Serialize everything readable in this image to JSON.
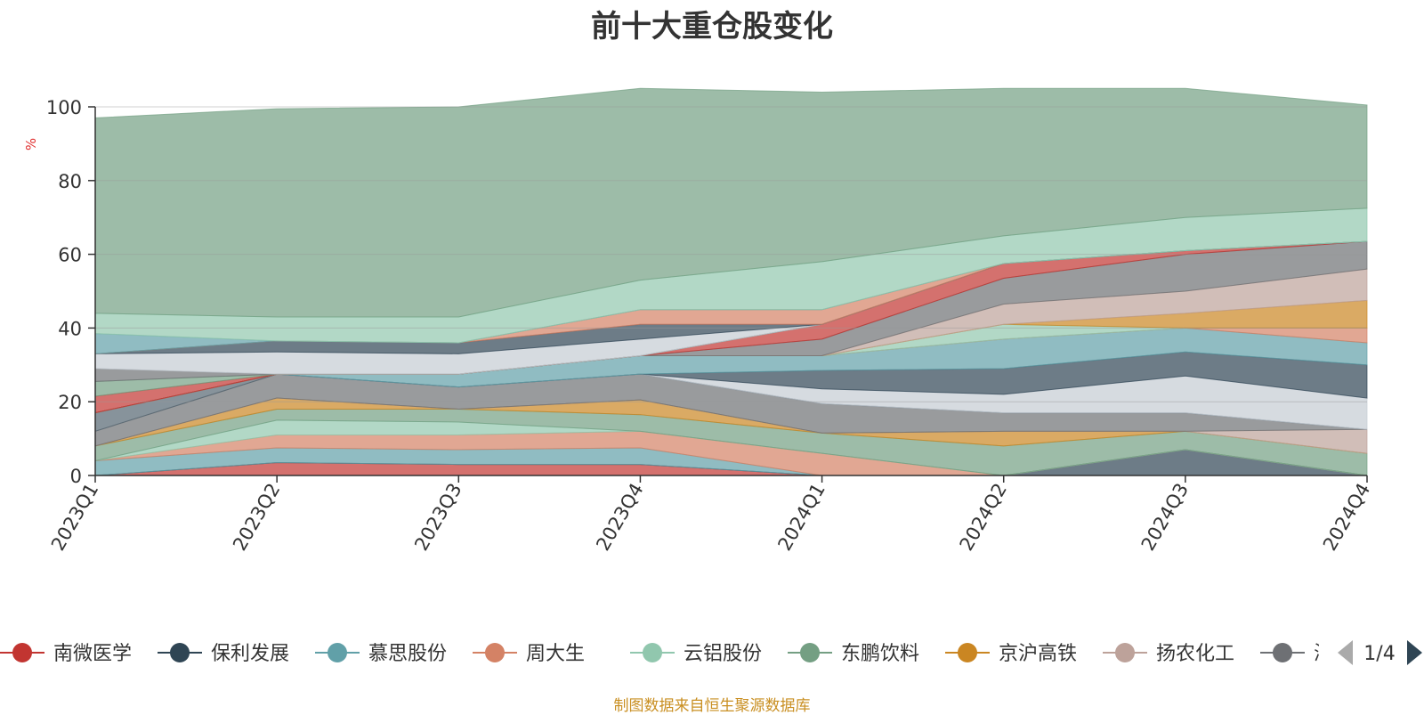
{
  "title": "前十大重仓股变化",
  "source_note": "制图数据来自恒生聚源数据库",
  "legend_page": "1/4",
  "chart_data": {
    "type": "area",
    "stacked": true,
    "title": "前十大重仓股变化",
    "ylabel": "%",
    "ylim": [
      0,
      100
    ],
    "yticks": [
      0,
      20,
      40,
      60,
      80,
      100
    ],
    "x": [
      "2023Q1",
      "2023Q2",
      "2023Q3",
      "2023Q4",
      "2024Q1",
      "2024Q2",
      "2024Q3",
      "2024Q4"
    ],
    "grid": true,
    "legend_position": "bottom",
    "series": [
      {
        "color": "#c23531",
        "values": [
          0,
          3.5,
          3,
          3,
          0,
          0,
          0,
          0
        ]
      },
      {
        "color": "#2f4554",
        "values": [
          0,
          0,
          0,
          0,
          0,
          0,
          7,
          0
        ]
      },
      {
        "color": "#61a0a8",
        "values": [
          4,
          4,
          4,
          4.5,
          0,
          0,
          0,
          0
        ]
      },
      {
        "color": "#d48265",
        "values": [
          0,
          3.5,
          4,
          4.5,
          6,
          0,
          0,
          0
        ]
      },
      {
        "color": "#91c7ae",
        "values": [
          0,
          4,
          3.5,
          0,
          0,
          0,
          0,
          0
        ]
      },
      {
        "color": "#749f83",
        "values": [
          4,
          3,
          3.5,
          4.5,
          5.5,
          8,
          5,
          6
        ]
      },
      {
        "color": "#ca8622",
        "values": [
          0,
          3,
          0,
          4,
          0,
          4,
          0,
          0
        ]
      },
      {
        "color": "#bda29a",
        "values": [
          0,
          0,
          0,
          0,
          0,
          0,
          0,
          6.5
        ]
      },
      {
        "color": "#6e7074",
        "values": [
          4,
          6.5,
          6,
          7,
          8,
          5,
          5,
          0
        ]
      },
      {
        "color": "#546570",
        "values": [
          5,
          0,
          0,
          0,
          0,
          0,
          0,
          0
        ]
      },
      {
        "color": "#c4ccd3",
        "values": [
          0,
          0,
          0,
          0,
          4,
          5,
          10,
          8.5
        ]
      },
      {
        "color": "#2f4554",
        "values": [
          0,
          0,
          0,
          0,
          5,
          7,
          6.5,
          9
        ]
      },
      {
        "color": "#61a0a8",
        "values": [
          0,
          0,
          3.5,
          5,
          4,
          8,
          6.5,
          6
        ]
      },
      {
        "color": "#d48265",
        "values": [
          0,
          0,
          0,
          0,
          0,
          0,
          0,
          4
        ]
      },
      {
        "color": "#91c7ae",
        "values": [
          0,
          0,
          0,
          0,
          0,
          4,
          0,
          0
        ]
      },
      {
        "color": "#ca8622",
        "values": [
          0,
          0,
          0,
          0,
          0,
          0,
          4,
          7.5
        ]
      },
      {
        "color": "#bda29a",
        "values": [
          0,
          0,
          0,
          0,
          0,
          5.5,
          6,
          8.5
        ]
      },
      {
        "color": "#6e7074",
        "values": [
          0,
          0,
          0,
          0,
          4.5,
          7,
          10,
          7.5
        ]
      },
      {
        "color": "#c23531",
        "values": [
          4.5,
          0,
          0,
          0,
          4,
          4,
          1,
          0
        ]
      },
      {
        "color": "#749f83",
        "values": [
          4,
          0,
          0,
          0,
          0,
          0,
          0,
          0
        ]
      },
      {
        "color": "#6e7074",
        "values": [
          3.5,
          0,
          0,
          0,
          0,
          0,
          0,
          0
        ]
      },
      {
        "color": "#c4ccd3",
        "values": [
          4,
          6,
          5.5,
          4.5,
          0,
          0,
          0,
          0
        ]
      },
      {
        "color": "#2f4554",
        "values": [
          0,
          3,
          3,
          4,
          0,
          0,
          0,
          0
        ]
      },
      {
        "color": "#d48265",
        "values": [
          0,
          0,
          0,
          4,
          4,
          0,
          0,
          0
        ]
      },
      {
        "color": "#61a0a8",
        "values": [
          5.5,
          0,
          0,
          0,
          0,
          0,
          0,
          0
        ]
      },
      {
        "color": "#91c7ae",
        "values": [
          5.5,
          6.5,
          7,
          8,
          13,
          7.5,
          9,
          9
        ]
      },
      {
        "color": "#749f83",
        "values": [
          53,
          56.5,
          57,
          52,
          46,
          40,
          35,
          28
        ]
      }
    ],
    "legend": [
      {
        "name": "南微医学",
        "color": "#c23531"
      },
      {
        "name": "保利发展",
        "color": "#2f4554"
      },
      {
        "name": "慕思股份",
        "color": "#61a0a8"
      },
      {
        "name": "周大生",
        "color": "#d48265"
      },
      {
        "name": "云铝股份",
        "color": "#91c7ae"
      },
      {
        "name": "东鹏饮料",
        "color": "#749f83"
      },
      {
        "name": "京沪高铁",
        "color": "#ca8622"
      },
      {
        "name": "扬农化工",
        "color": "#bda29a"
      },
      {
        "name": "海億",
        "color": "#6e7074"
      }
    ]
  }
}
